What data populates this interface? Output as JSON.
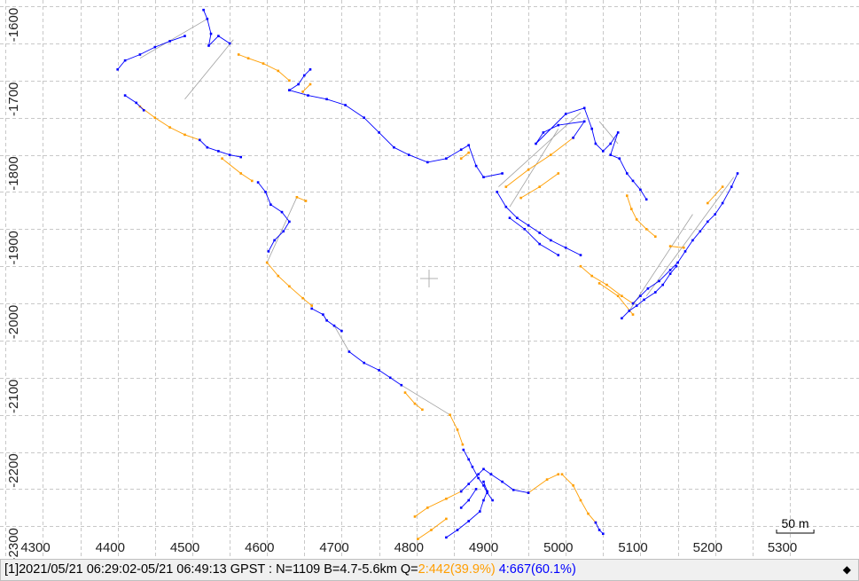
{
  "chart_data": {
    "type": "line",
    "title": "",
    "xlabel": "",
    "ylabel": "",
    "xlim": [
      4260,
      5350
    ],
    "ylim": [
      -2305,
      -1575
    ],
    "x_ticks": [
      4300,
      4400,
      4500,
      4600,
      4700,
      4800,
      4900,
      5000,
      5100,
      5200,
      5300
    ],
    "y_ticks": [
      -1600,
      -1700,
      -1800,
      -1900,
      -2000,
      -2100,
      -2200,
      -2300
    ],
    "x_minor_step": 50,
    "y_minor_step": 50,
    "grid": true,
    "scale_bar": {
      "label": "50 m",
      "length": 50
    },
    "colors": {
      "q2": "#ff9e00",
      "q4": "#0000ff",
      "connector": "#a0a0a0",
      "grid": "#c8c8c8"
    },
    "series": [
      {
        "name": "Q=2",
        "color": "#ff9e00",
        "segments": [
          [
            [
              4572,
              1640
            ],
            [
              4585,
              1645
            ],
            [
              4605,
              1652
            ],
            [
              4625,
              1662
            ],
            [
              4640,
              1675
            ]
          ],
          [
            [
              4440,
              1710
            ],
            [
              4460,
              1725
            ],
            [
              4480,
              1738
            ],
            [
              4500,
              1748
            ],
            [
              4520,
              1755
            ]
          ],
          [
            [
              4550,
              1780
            ],
            [
              4575,
              1800
            ],
            [
              4590,
              1810
            ]
          ],
          [
            [
              4650,
              1832
            ],
            [
              4662,
              1837
            ]
          ],
          [
            [
              4610,
              1920
            ],
            [
              4625,
              1938
            ],
            [
              4640,
              1952
            ],
            [
              4658,
              1968
            ],
            [
              4670,
              1978
            ]
          ],
          [
            [
              4658,
              1690
            ],
            [
              4668,
              1680
            ]
          ],
          [
            [
              4880,
              1772
            ],
            [
              4870,
              1780
            ]
          ],
          [
            [
              4795,
              2095
            ],
            [
              4808,
              2110
            ],
            [
              4818,
              2118
            ]
          ],
          [
            [
              4855,
              2125
            ],
            [
              4865,
              2145
            ],
            [
              4872,
              2165
            ]
          ],
          [
            [
              4808,
              2262
            ],
            [
              4825,
              2250
            ],
            [
              4850,
              2238
            ],
            [
              4870,
              2228
            ]
          ],
          [
            [
              4930,
              1818
            ],
            [
              4960,
              1795
            ],
            [
              4990,
              1775
            ],
            [
              5020,
              1752
            ]
          ],
          [
            [
              4950,
              1833
            ],
            [
              4975,
              1818
            ],
            [
              5000,
              1800
            ]
          ],
          [
            [
              5030,
              1925
            ],
            [
              5045,
              1938
            ],
            [
              5065,
              1950
            ],
            [
              5085,
              1965
            ],
            [
              5100,
              1975
            ]
          ],
          [
            [
              5055,
              1948
            ],
            [
              5080,
              1965
            ],
            [
              5100,
              1990
            ]
          ],
          [
            [
              5130,
              1885
            ],
            [
              5118,
              1875
            ],
            [
              5105,
              1862
            ],
            [
              5098,
              1848
            ],
            [
              5092,
              1830
            ]
          ],
          [
            [
              5150,
              1898
            ],
            [
              5168,
              1900
            ]
          ],
          [
            [
              5005,
              2205
            ],
            [
              5020,
              2220
            ],
            [
              5030,
              2240
            ],
            [
              5040,
              2258
            ],
            [
              5050,
              2270
            ]
          ],
          [
            [
              4960,
              2230
            ],
            [
              4985,
              2212
            ],
            [
              5000,
              2205
            ]
          ],
          [
            [
              4812,
              2292
            ],
            [
              4830,
              2280
            ],
            [
              4850,
              2265
            ]
          ],
          [
            [
              5200,
              1840
            ],
            [
              5220,
              1818
            ]
          ]
        ]
      },
      {
        "name": "Q=4",
        "color": "#0000ff",
        "segments": [
          [
            [
              4525,
              1580
            ],
            [
              4530,
              1592
            ],
            [
              4535,
              1612
            ],
            [
              4532,
              1628
            ],
            [
              4545,
              1615
            ],
            [
              4560,
              1625
            ]
          ],
          [
            [
              4410,
              1660
            ],
            [
              4420,
              1648
            ],
            [
              4440,
              1640
            ],
            [
              4460,
              1630
            ],
            [
              4480,
              1622
            ],
            [
              4500,
              1615
            ]
          ],
          [
            [
              4420,
              1695
            ],
            [
              4435,
              1705
            ],
            [
              4445,
              1715
            ]
          ],
          [
            [
              4640,
              1688
            ],
            [
              4652,
              1680
            ],
            [
              4660,
              1668
            ],
            [
              4668,
              1660
            ]
          ],
          [
            [
              4640,
              1688
            ],
            [
              4665,
              1695
            ],
            [
              4690,
              1700
            ],
            [
              4715,
              1708
            ],
            [
              4740,
              1725
            ],
            [
              4760,
              1745
            ],
            [
              4780,
              1765
            ],
            [
              4800,
              1775
            ],
            [
              4825,
              1785
            ],
            [
              4850,
              1780
            ],
            [
              4870,
              1768
            ],
            [
              4880,
              1762
            ],
            [
              4890,
              1790
            ],
            [
              4900,
              1805
            ],
            [
              4925,
              1800
            ]
          ],
          [
            [
              4520,
              1755
            ],
            [
              4530,
              1765
            ],
            [
              4545,
              1770
            ],
            [
              4560,
              1775
            ],
            [
              4575,
              1778
            ]
          ],
          [
            [
              4598,
              1812
            ],
            [
              4608,
              1825
            ],
            [
              4615,
              1842
            ],
            [
              4630,
              1852
            ],
            [
              4640,
              1865
            ],
            [
              4632,
              1878
            ],
            [
              4620,
              1890
            ],
            [
              4612,
              1905
            ]
          ],
          [
            [
              4670,
              1982
            ],
            [
              4685,
              1990
            ],
            [
              4690,
              1998
            ],
            [
              4700,
              2005
            ],
            [
              4710,
              2012
            ]
          ],
          [
            [
              4720,
              2040
            ],
            [
              4740,
              2055
            ],
            [
              4760,
              2065
            ],
            [
              4775,
              2075
            ],
            [
              4790,
              2085
            ]
          ],
          [
            [
              4873,
              2172
            ],
            [
              4880,
              2185
            ],
            [
              4885,
              2195
            ],
            [
              4893,
              2210
            ],
            [
              4900,
              2220
            ],
            [
              4905,
              2230
            ],
            [
              4912,
              2240
            ]
          ],
          [
            [
              4870,
              2228
            ],
            [
              4880,
              2218
            ],
            [
              4893,
              2205
            ],
            [
              4900,
              2198
            ],
            [
              4910,
              2205
            ]
          ],
          [
            [
              4900,
              2215
            ],
            [
              4905,
              2228
            ],
            [
              4900,
              2240
            ],
            [
              4895,
              2255
            ],
            [
              4880,
              2268
            ],
            [
              4865,
              2280
            ],
            [
              4850,
              2290
            ]
          ],
          [
            [
              4910,
              2205
            ],
            [
              4925,
              2215
            ],
            [
              4940,
              2226
            ],
            [
              4960,
              2230
            ]
          ],
          [
            [
              4918,
              1825
            ],
            [
              4930,
              1845
            ],
            [
              4945,
              1860
            ],
            [
              4960,
              1870
            ],
            [
              4975,
              1880
            ],
            [
              4990,
              1890
            ],
            [
              5010,
              1900
            ],
            [
              5030,
              1910
            ]
          ],
          [
            [
              4935,
              1860
            ],
            [
              4955,
              1875
            ],
            [
              4975,
              1895
            ],
            [
              5000,
              1910
            ]
          ],
          [
            [
              5020,
              1752
            ],
            [
              5035,
              1730
            ],
            [
              5000,
              1735
            ],
            [
              4980,
              1745
            ],
            [
              4970,
              1760
            ],
            [
              5010,
              1720
            ],
            [
              5035,
              1712
            ],
            [
              5045,
              1740
            ],
            [
              5050,
              1760
            ],
            [
              5060,
              1770
            ],
            [
              5070,
              1760
            ],
            [
              5080,
              1745
            ],
            [
              5070,
              1775
            ],
            [
              5082,
              1780
            ],
            [
              5092,
              1800
            ],
            [
              5100,
              1810
            ],
            [
              5110,
              1822
            ],
            [
              5118,
              1835
            ]
          ],
          [
            [
              5100,
              1975
            ],
            [
              5110,
              1965
            ],
            [
              5120,
              1955
            ],
            [
              5135,
              1945
            ],
            [
              5150,
              1930
            ],
            [
              5160,
              1920
            ],
            [
              5170,
              1905
            ],
            [
              5180,
              1890
            ],
            [
              5190,
              1878
            ],
            [
              5200,
              1865
            ],
            [
              5210,
              1855
            ],
            [
              5220,
              1840
            ],
            [
              5232,
              1818
            ],
            [
              5240,
              1800
            ]
          ],
          [
            [
              5085,
              1995
            ],
            [
              5095,
              1985
            ],
            [
              5105,
              1978
            ],
            [
              5115,
              1970
            ],
            [
              5130,
              1960
            ],
            [
              5140,
              1950
            ],
            [
              5150,
              1935
            ],
            [
              5158,
              1925
            ]
          ],
          [
            [
              5050,
              2270
            ],
            [
              5055,
              2280
            ],
            [
              5060,
              2285
            ]
          ],
          [
            [
              4890,
              2225
            ],
            [
              4880,
              2240
            ],
            [
              4870,
              2250
            ]
          ]
        ]
      }
    ],
    "connectors": [
      [
        [
          4530,
          1592
        ],
        [
          4440,
          1645
        ]
      ],
      [
        [
          4565,
          1620
        ],
        [
          4500,
          1700
        ]
      ],
      [
        [
          4650,
          1832
        ],
        [
          4610,
          1920
        ]
      ],
      [
        [
          4700,
          2005
        ],
        [
          4720,
          2040
        ]
      ],
      [
        [
          4790,
          2085
        ],
        [
          4855,
          2125
        ]
      ],
      [
        [
          4920,
          1818
        ],
        [
          5030,
          1718
        ]
      ],
      [
        [
          4935,
          1845
        ],
        [
          5000,
          1740
        ]
      ],
      [
        [
          5235,
          1805
        ],
        [
          5118,
          1965
        ]
      ],
      [
        [
          5055,
          1730
        ],
        [
          5080,
          1760
        ]
      ],
      [
        [
          5180,
          1855
        ],
        [
          5095,
          1985
        ]
      ]
    ],
    "status": {
      "prefix": "[1]2021/05/21 06:29:02-05/21 06:49:13 GPST : N=1109 B=4.7-5.6km Q=",
      "q2": "2:442(39.9%)",
      "q4": "4:667(60.1%)",
      "menu_glyph": "◆"
    }
  }
}
